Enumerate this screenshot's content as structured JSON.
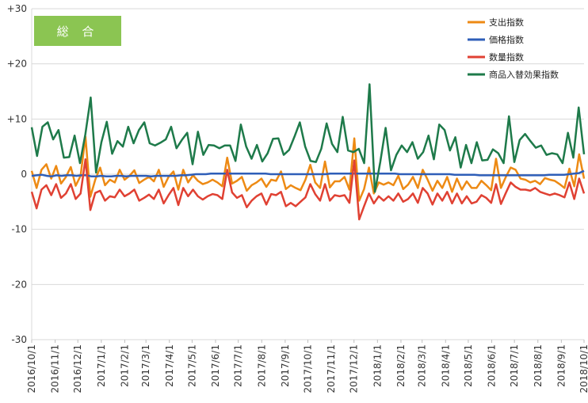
{
  "chart_data": {
    "type": "line",
    "title": "",
    "badge_label": "総 合",
    "xlabel": "",
    "ylabel": "",
    "ylim": [
      -30,
      30
    ],
    "yticks": [
      -30,
      -20,
      -10,
      0,
      10,
      20,
      30
    ],
    "ytick_labels": [
      "-30",
      "-20",
      "-10",
      "0",
      "+10",
      "+20",
      "+30"
    ],
    "grid": "horizontal",
    "legend_position": "top-right",
    "x_ticks": [
      "2016/10/1",
      "2016/11/1",
      "2016/12/1",
      "2017/1/1",
      "2017/2/1",
      "2017/3/1",
      "2017/4/1",
      "2017/5/1",
      "2017/6/1",
      "2017/7/1",
      "2017/8/1",
      "2017/9/1",
      "2017/10/1",
      "2017/11/1",
      "2017/12/1",
      "2018/1/1",
      "2018/2/1",
      "2018/3/1",
      "2018/4/1",
      "2018/5/1",
      "2018/6/1",
      "2018/7/1",
      "2018/8/1",
      "2018/9/1",
      "2018/10/1"
    ],
    "x_range": [
      "2016/10/1",
      "2018/10/1"
    ],
    "series": [
      {
        "name": "支出指数",
        "color": "#ED8A14",
        "values": [
          0.6,
          -2.5,
          0.8,
          1.8,
          -0.8,
          1.5,
          -1.7,
          -0.5,
          1.3,
          -2.1,
          -0.3,
          6.8,
          -4.1,
          -1.0,
          1.2,
          -2.0,
          -1.0,
          -1.5,
          0.8,
          -1.0,
          -0.3,
          0.7,
          -1.6,
          -1.0,
          -0.5,
          -1.3,
          0.8,
          -2.3,
          -0.5,
          0.5,
          -2.8,
          0.8,
          -1.5,
          -0.2,
          -1.2,
          -1.8,
          -1.5,
          -1.0,
          -1.5,
          -2.2,
          3.0,
          -1.7,
          -1.2,
          -0.5,
          -3.0,
          -2.0,
          -1.5,
          -0.8,
          -2.3,
          -1.0,
          -1.2,
          0.5,
          -2.7,
          -2.0,
          -2.5,
          -2.9,
          -1.0,
          1.7,
          -1.5,
          -2.5,
          2.3,
          -2.4,
          -1.3,
          -1.3,
          -0.5,
          -2.8,
          6.5,
          -4.8,
          -2.7,
          1.2,
          -3.5,
          -1.5,
          -1.9,
          -1.5,
          -2.0,
          -0.3,
          -2.7,
          -1.9,
          -0.5,
          -2.5,
          0.8,
          -1.0,
          -3.0,
          -1.2,
          -2.5,
          -0.5,
          -3.2,
          -0.8,
          -2.8,
          -1.3,
          -2.5,
          -2.5,
          -1.2,
          -2.0,
          -2.9,
          2.8,
          -2.5,
          -0.5,
          1.2,
          0.8,
          -0.8,
          -1.0,
          -1.5,
          -1.2,
          -1.8,
          -0.7,
          -1.0,
          -1.2,
          -1.8,
          -2.5,
          1.0,
          -2.2,
          3.6,
          -0.8
        ]
      },
      {
        "name": "価格指数",
        "color": "#2E5EB8",
        "values": [
          -0.3,
          -0.2,
          -0.1,
          -0.3,
          -0.4,
          -0.2,
          -0.3,
          -0.2,
          -0.2,
          -0.3,
          -0.2,
          -0.2,
          -0.4,
          -0.4,
          -0.3,
          -0.4,
          -0.4,
          -0.3,
          -0.3,
          -0.4,
          -0.3,
          -0.3,
          -0.3,
          -0.3,
          -0.4,
          -0.3,
          -0.3,
          -0.3,
          -0.3,
          -0.3,
          -0.2,
          -0.2,
          -0.1,
          0.0,
          0.0,
          0.0,
          0.1,
          0.1,
          0.1,
          0.1,
          0.1,
          0.1,
          0.1,
          0.1,
          0.1,
          0.1,
          0.1,
          0.1,
          0.0,
          0.0,
          0.0,
          0.0,
          0.0,
          0.0,
          0.0,
          0.0,
          0.0,
          0.0,
          0.0,
          0.0,
          0.1,
          0.1,
          0.1,
          0.1,
          0.1,
          0.1,
          0.1,
          0.1,
          0.1,
          0.1,
          0.1,
          0.1,
          0.1,
          0.1,
          0.0,
          0.0,
          0.0,
          0.0,
          0.0,
          0.0,
          0.0,
          0.0,
          0.0,
          0.0,
          0.0,
          -0.1,
          -0.1,
          -0.1,
          -0.1,
          -0.1,
          -0.2,
          -0.2,
          -0.2,
          -0.2,
          -0.2,
          -0.2,
          -0.2,
          -0.2,
          -0.2,
          -0.2,
          -0.2,
          -0.2,
          -0.2,
          -0.2,
          -0.1,
          -0.1,
          -0.1,
          -0.1,
          0.0,
          0.1,
          0.2,
          0.6
        ]
      },
      {
        "name": "数量指数",
        "color": "#E04133",
        "values": [
          -3.2,
          -6.2,
          -2.8,
          -2.0,
          -3.8,
          -1.8,
          -4.3,
          -3.5,
          -1.8,
          -4.5,
          -3.5,
          2.7,
          -6.5,
          -3.4,
          -3.0,
          -4.8,
          -4.0,
          -4.2,
          -2.8,
          -4.0,
          -3.5,
          -2.8,
          -4.8,
          -4.3,
          -3.7,
          -4.5,
          -2.8,
          -5.3,
          -3.8,
          -2.5,
          -5.6,
          -2.5,
          -4.0,
          -2.8,
          -4.0,
          -4.6,
          -4.0,
          -3.6,
          -3.8,
          -4.5,
          0.8,
          -3.3,
          -4.3,
          -3.8,
          -6.0,
          -4.8,
          -4.0,
          -3.5,
          -5.5,
          -3.6,
          -3.8,
          -3.2,
          -5.8,
          -5.2,
          -5.8,
          -5.0,
          -4.2,
          -1.8,
          -3.6,
          -4.8,
          -1.8,
          -4.8,
          -3.8,
          -4.0,
          -3.8,
          -5.2,
          2.5,
          -8.2,
          -5.8,
          -3.5,
          -5.3,
          -4.0,
          -4.8,
          -4.0,
          -4.8,
          -3.5,
          -5.0,
          -4.5,
          -3.5,
          -5.2,
          -2.5,
          -3.5,
          -5.5,
          -3.5,
          -4.8,
          -3.2,
          -5.3,
          -3.5,
          -5.3,
          -4.0,
          -5.3,
          -5.0,
          -3.8,
          -4.3,
          -5.2,
          -1.8,
          -5.4,
          -3.4,
          -1.5,
          -2.3,
          -2.8,
          -2.8,
          -3.0,
          -2.5,
          -3.2,
          -3.5,
          -3.8,
          -3.5,
          -3.8,
          -4.2,
          -1.5,
          -4.5,
          -0.8,
          -3.5
        ]
      },
      {
        "name": "商品入替効果指数",
        "color": "#1E7A4A",
        "values": [
          8.5,
          3.3,
          8.6,
          9.4,
          6.3,
          8.0,
          3.0,
          3.1,
          7.0,
          2.0,
          7.2,
          13.9,
          0.3,
          5.8,
          9.5,
          3.7,
          6.0,
          5.0,
          8.6,
          5.6,
          8.0,
          9.4,
          5.6,
          5.2,
          5.7,
          6.3,
          8.6,
          4.7,
          6.2,
          7.5,
          1.8,
          7.7,
          3.5,
          5.3,
          5.2,
          4.7,
          5.2,
          5.2,
          2.4,
          9.0,
          5.0,
          2.8,
          5.3,
          2.3,
          3.8,
          6.4,
          6.5,
          3.5,
          4.4,
          6.8,
          9.4,
          5.0,
          2.4,
          2.2,
          4.6,
          9.2,
          5.5,
          4.0,
          10.4,
          4.3,
          4.0,
          4.6,
          2.0,
          16.3,
          -3.2,
          2.2,
          8.4,
          0.7,
          3.5,
          5.2,
          4.0,
          5.8,
          2.8,
          4.0,
          7.0,
          2.7,
          9.0,
          8.0,
          4.3,
          6.7,
          1.2,
          5.3,
          2.0,
          5.8,
          2.5,
          2.6,
          4.5,
          3.8,
          2.0,
          10.5,
          2.2,
          6.2,
          7.3,
          6.0,
          4.8,
          5.2,
          3.5,
          3.8,
          3.6,
          2.0,
          7.5,
          3.0,
          12.1,
          3.6
        ]
      }
    ]
  }
}
